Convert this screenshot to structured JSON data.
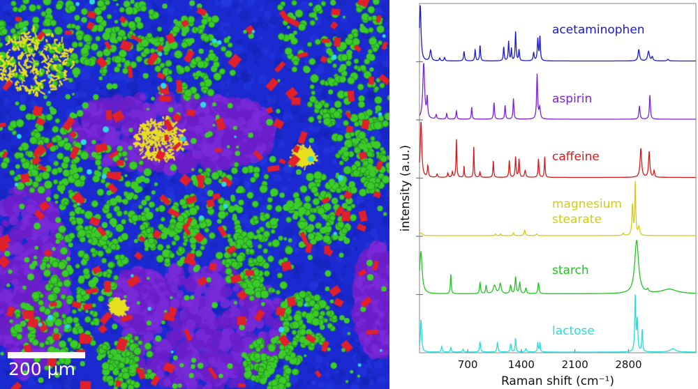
{
  "image": {
    "scale_bar_label": "200 µm",
    "colors": {
      "background": "#1a2ad0",
      "purple": "#6a1ec8",
      "green": "#3ccc2a",
      "red": "#e0202a",
      "yellow": "#e8e020",
      "cyan": "#30d8e0"
    }
  },
  "chart_data": {
    "type": "line",
    "xlabel": "Raman shift (cm⁻¹)",
    "ylabel": "intensity (a.u.)",
    "xlim": [
      70,
      3680
    ],
    "xticks": [
      700,
      1400,
      2100,
      2800
    ],
    "xtick_labels": [
      "700",
      "1400",
      "2100",
      "2800"
    ],
    "grid": false,
    "stacked_offset": true,
    "series": [
      {
        "name": "acetaminophen",
        "color": "#1a1ad0",
        "peaks": [
          [
            80,
            1.0,
            12
          ],
          [
            215,
            0.19,
            12
          ],
          [
            334,
            0.05,
            8
          ],
          [
            397,
            0.06,
            8
          ],
          [
            652,
            0.17,
            8
          ],
          [
            797,
            0.2,
            7
          ],
          [
            861,
            0.28,
            7
          ],
          [
            1170,
            0.25,
            7
          ],
          [
            1234,
            0.35,
            7
          ],
          [
            1270,
            0.22,
            6
          ],
          [
            1325,
            0.53,
            7
          ],
          [
            1370,
            0.2,
            7
          ],
          [
            1561,
            0.15,
            8
          ],
          [
            1615,
            0.39,
            8
          ],
          [
            1643,
            0.43,
            7
          ],
          [
            2934,
            0.2,
            12
          ],
          [
            3061,
            0.17,
            14
          ],
          [
            3110,
            0.07,
            10
          ],
          [
            3315,
            0.03,
            12
          ]
        ]
      },
      {
        "name": "aspirin",
        "color": "#7a22d8",
        "peaks": [
          [
            125,
            1.0,
            14
          ],
          [
            170,
            0.35,
            8
          ],
          [
            288,
            0.08,
            8
          ],
          [
            425,
            0.1,
            7
          ],
          [
            552,
            0.15,
            7
          ],
          [
            752,
            0.22,
            6
          ],
          [
            1043,
            0.3,
            7
          ],
          [
            1188,
            0.25,
            7
          ],
          [
            1297,
            0.37,
            7
          ],
          [
            1606,
            0.8,
            8
          ],
          [
            1640,
            0.2,
            10
          ],
          [
            2943,
            0.23,
            9
          ],
          [
            3079,
            0.43,
            8
          ]
        ]
      },
      {
        "name": "caffeine",
        "color": "#d81a1a",
        "peaks": [
          [
            90,
            1.0,
            12
          ],
          [
            179,
            0.2,
            8
          ],
          [
            300,
            0.06,
            8
          ],
          [
            440,
            0.08,
            7
          ],
          [
            500,
            0.1,
            7
          ],
          [
            552,
            0.7,
            6
          ],
          [
            652,
            0.2,
            5
          ],
          [
            779,
            0.57,
            5
          ],
          [
            860,
            0.1,
            7
          ],
          [
            1034,
            0.3,
            6
          ],
          [
            1243,
            0.3,
            7
          ],
          [
            1325,
            0.37,
            7
          ],
          [
            1370,
            0.33,
            7
          ],
          [
            1450,
            0.12,
            10
          ],
          [
            1624,
            0.33,
            7
          ],
          [
            1706,
            0.38,
            6
          ],
          [
            2961,
            0.52,
            12
          ],
          [
            3070,
            0.46,
            10
          ],
          [
            3134,
            0.12,
            8
          ]
        ]
      },
      {
        "name": "magnesium\nstearate",
        "color": "#d4cc10",
        "peaks": [
          [
            90,
            0.05,
            20
          ],
          [
            1063,
            0.03,
            8
          ],
          [
            1130,
            0.03,
            8
          ],
          [
            1297,
            0.05,
            8
          ],
          [
            1443,
            0.1,
            9
          ],
          [
            1600,
            0.03,
            10
          ],
          [
            2730,
            0.04,
            10
          ],
          [
            2852,
            0.55,
            9
          ],
          [
            2888,
            0.95,
            7
          ],
          [
            2935,
            0.15,
            12
          ]
        ]
      },
      {
        "name": "starch",
        "color": "#22c422",
        "peaks": [
          [
            88,
            0.75,
            20
          ],
          [
            479,
            0.35,
            7
          ],
          [
            861,
            0.2,
            8
          ],
          [
            940,
            0.15,
            8
          ],
          [
            1050,
            0.15,
            20
          ],
          [
            1125,
            0.18,
            14
          ],
          [
            1260,
            0.15,
            10
          ],
          [
            1325,
            0.3,
            9
          ],
          [
            1380,
            0.2,
            9
          ],
          [
            1460,
            0.1,
            10
          ],
          [
            1624,
            0.2,
            9
          ],
          [
            2906,
            0.95,
            30
          ],
          [
            3050,
            0.05,
            12
          ],
          [
            3333,
            0.08,
            120
          ]
        ]
      },
      {
        "name": "lactose",
        "color": "#22dede",
        "peaks": [
          [
            90,
            0.58,
            10
          ],
          [
            361,
            0.1,
            8
          ],
          [
            479,
            0.08,
            7
          ],
          [
            640,
            0.05,
            8
          ],
          [
            861,
            0.18,
            8
          ],
          [
            1088,
            0.17,
            8
          ],
          [
            1261,
            0.15,
            8
          ],
          [
            1325,
            0.25,
            7
          ],
          [
            1460,
            0.06,
            10
          ],
          [
            1615,
            0.17,
            7
          ],
          [
            1643,
            0.17,
            6
          ],
          [
            2888,
            1.0,
            8
          ],
          [
            2915,
            0.55,
            8
          ],
          [
            2979,
            0.4,
            7
          ],
          [
            3379,
            0.06,
            40
          ]
        ]
      }
    ]
  }
}
